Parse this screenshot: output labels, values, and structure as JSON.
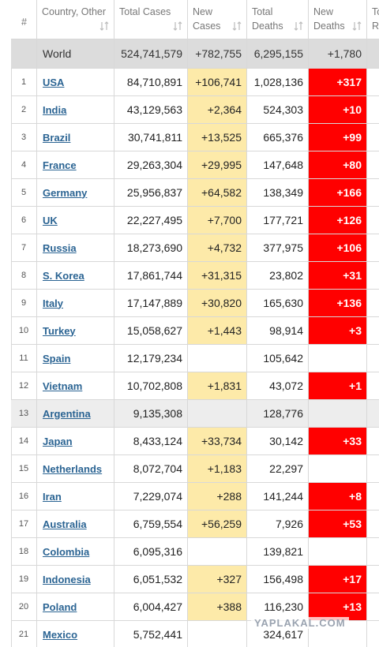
{
  "header": {
    "columns": [
      "#",
      "Country, Other",
      "Total Cases",
      "New Cases",
      "Total Deaths",
      "New Deaths",
      "Total Recovered"
    ]
  },
  "world": {
    "country": "World",
    "total_cases": "524,741,579",
    "new_cases": "+782,755",
    "total_deaths": "6,295,155",
    "new_deaths": "+1,780"
  },
  "rows": [
    {
      "rank": "1",
      "country": "USA",
      "total_cases": "84,710,891",
      "new_cases": "+106,741",
      "total_deaths": "1,028,136",
      "new_deaths": "+317"
    },
    {
      "rank": "2",
      "country": "India",
      "total_cases": "43,129,563",
      "new_cases": "+2,364",
      "total_deaths": "524,303",
      "new_deaths": "+10"
    },
    {
      "rank": "3",
      "country": "Brazil",
      "total_cases": "30,741,811",
      "new_cases": "+13,525",
      "total_deaths": "665,376",
      "new_deaths": "+99"
    },
    {
      "rank": "4",
      "country": "France",
      "total_cases": "29,263,304",
      "new_cases": "+29,995",
      "total_deaths": "147,648",
      "new_deaths": "+80"
    },
    {
      "rank": "5",
      "country": "Germany",
      "total_cases": "25,956,837",
      "new_cases": "+64,582",
      "total_deaths": "138,349",
      "new_deaths": "+166"
    },
    {
      "rank": "6",
      "country": "UK",
      "total_cases": "22,227,495",
      "new_cases": "+7,700",
      "total_deaths": "177,721",
      "new_deaths": "+126"
    },
    {
      "rank": "7",
      "country": "Russia",
      "total_cases": "18,273,690",
      "new_cases": "+4,732",
      "total_deaths": "377,975",
      "new_deaths": "+106"
    },
    {
      "rank": "8",
      "country": "S. Korea",
      "total_cases": "17,861,744",
      "new_cases": "+31,315",
      "total_deaths": "23,802",
      "new_deaths": "+31"
    },
    {
      "rank": "9",
      "country": "Italy",
      "total_cases": "17,147,889",
      "new_cases": "+30,820",
      "total_deaths": "165,630",
      "new_deaths": "+136"
    },
    {
      "rank": "10",
      "country": "Turkey",
      "total_cases": "15,058,627",
      "new_cases": "+1,443",
      "total_deaths": "98,914",
      "new_deaths": "+3"
    },
    {
      "rank": "11",
      "country": "Spain",
      "total_cases": "12,179,234",
      "total_deaths": "105,642"
    },
    {
      "rank": "12",
      "country": "Vietnam",
      "total_cases": "10,702,808",
      "new_cases": "+1,831",
      "total_deaths": "43,072",
      "new_deaths": "+1"
    },
    {
      "rank": "13",
      "country": "Argentina",
      "total_cases": "9,135,308",
      "total_deaths": "128,776"
    },
    {
      "rank": "14",
      "country": "Japan",
      "total_cases": "8,433,124",
      "new_cases": "+33,734",
      "total_deaths": "30,142",
      "new_deaths": "+33"
    },
    {
      "rank": "15",
      "country": "Netherlands",
      "total_cases": "8,072,704",
      "new_cases": "+1,183",
      "total_deaths": "22,297"
    },
    {
      "rank": "16",
      "country": "Iran",
      "total_cases": "7,229,074",
      "new_cases": "+288",
      "total_deaths": "141,244",
      "new_deaths": "+8"
    },
    {
      "rank": "17",
      "country": "Australia",
      "total_cases": "6,759,554",
      "new_cases": "+56,259",
      "total_deaths": "7,926",
      "new_deaths": "+53"
    },
    {
      "rank": "18",
      "country": "Colombia",
      "total_cases": "6,095,316",
      "total_deaths": "139,821"
    },
    {
      "rank": "19",
      "country": "Indonesia",
      "total_cases": "6,051,532",
      "new_cases": "+327",
      "total_deaths": "156,498",
      "new_deaths": "+17"
    },
    {
      "rank": "20",
      "country": "Poland",
      "total_cases": "6,004,427",
      "new_cases": "+388",
      "total_deaths": "116,230",
      "new_deaths": "+13"
    },
    {
      "rank": "21",
      "country": "Mexico",
      "total_cases": "5,752,441",
      "total_deaths": "324,617"
    }
  ],
  "watermark": "YAPLAKAL.COM"
}
